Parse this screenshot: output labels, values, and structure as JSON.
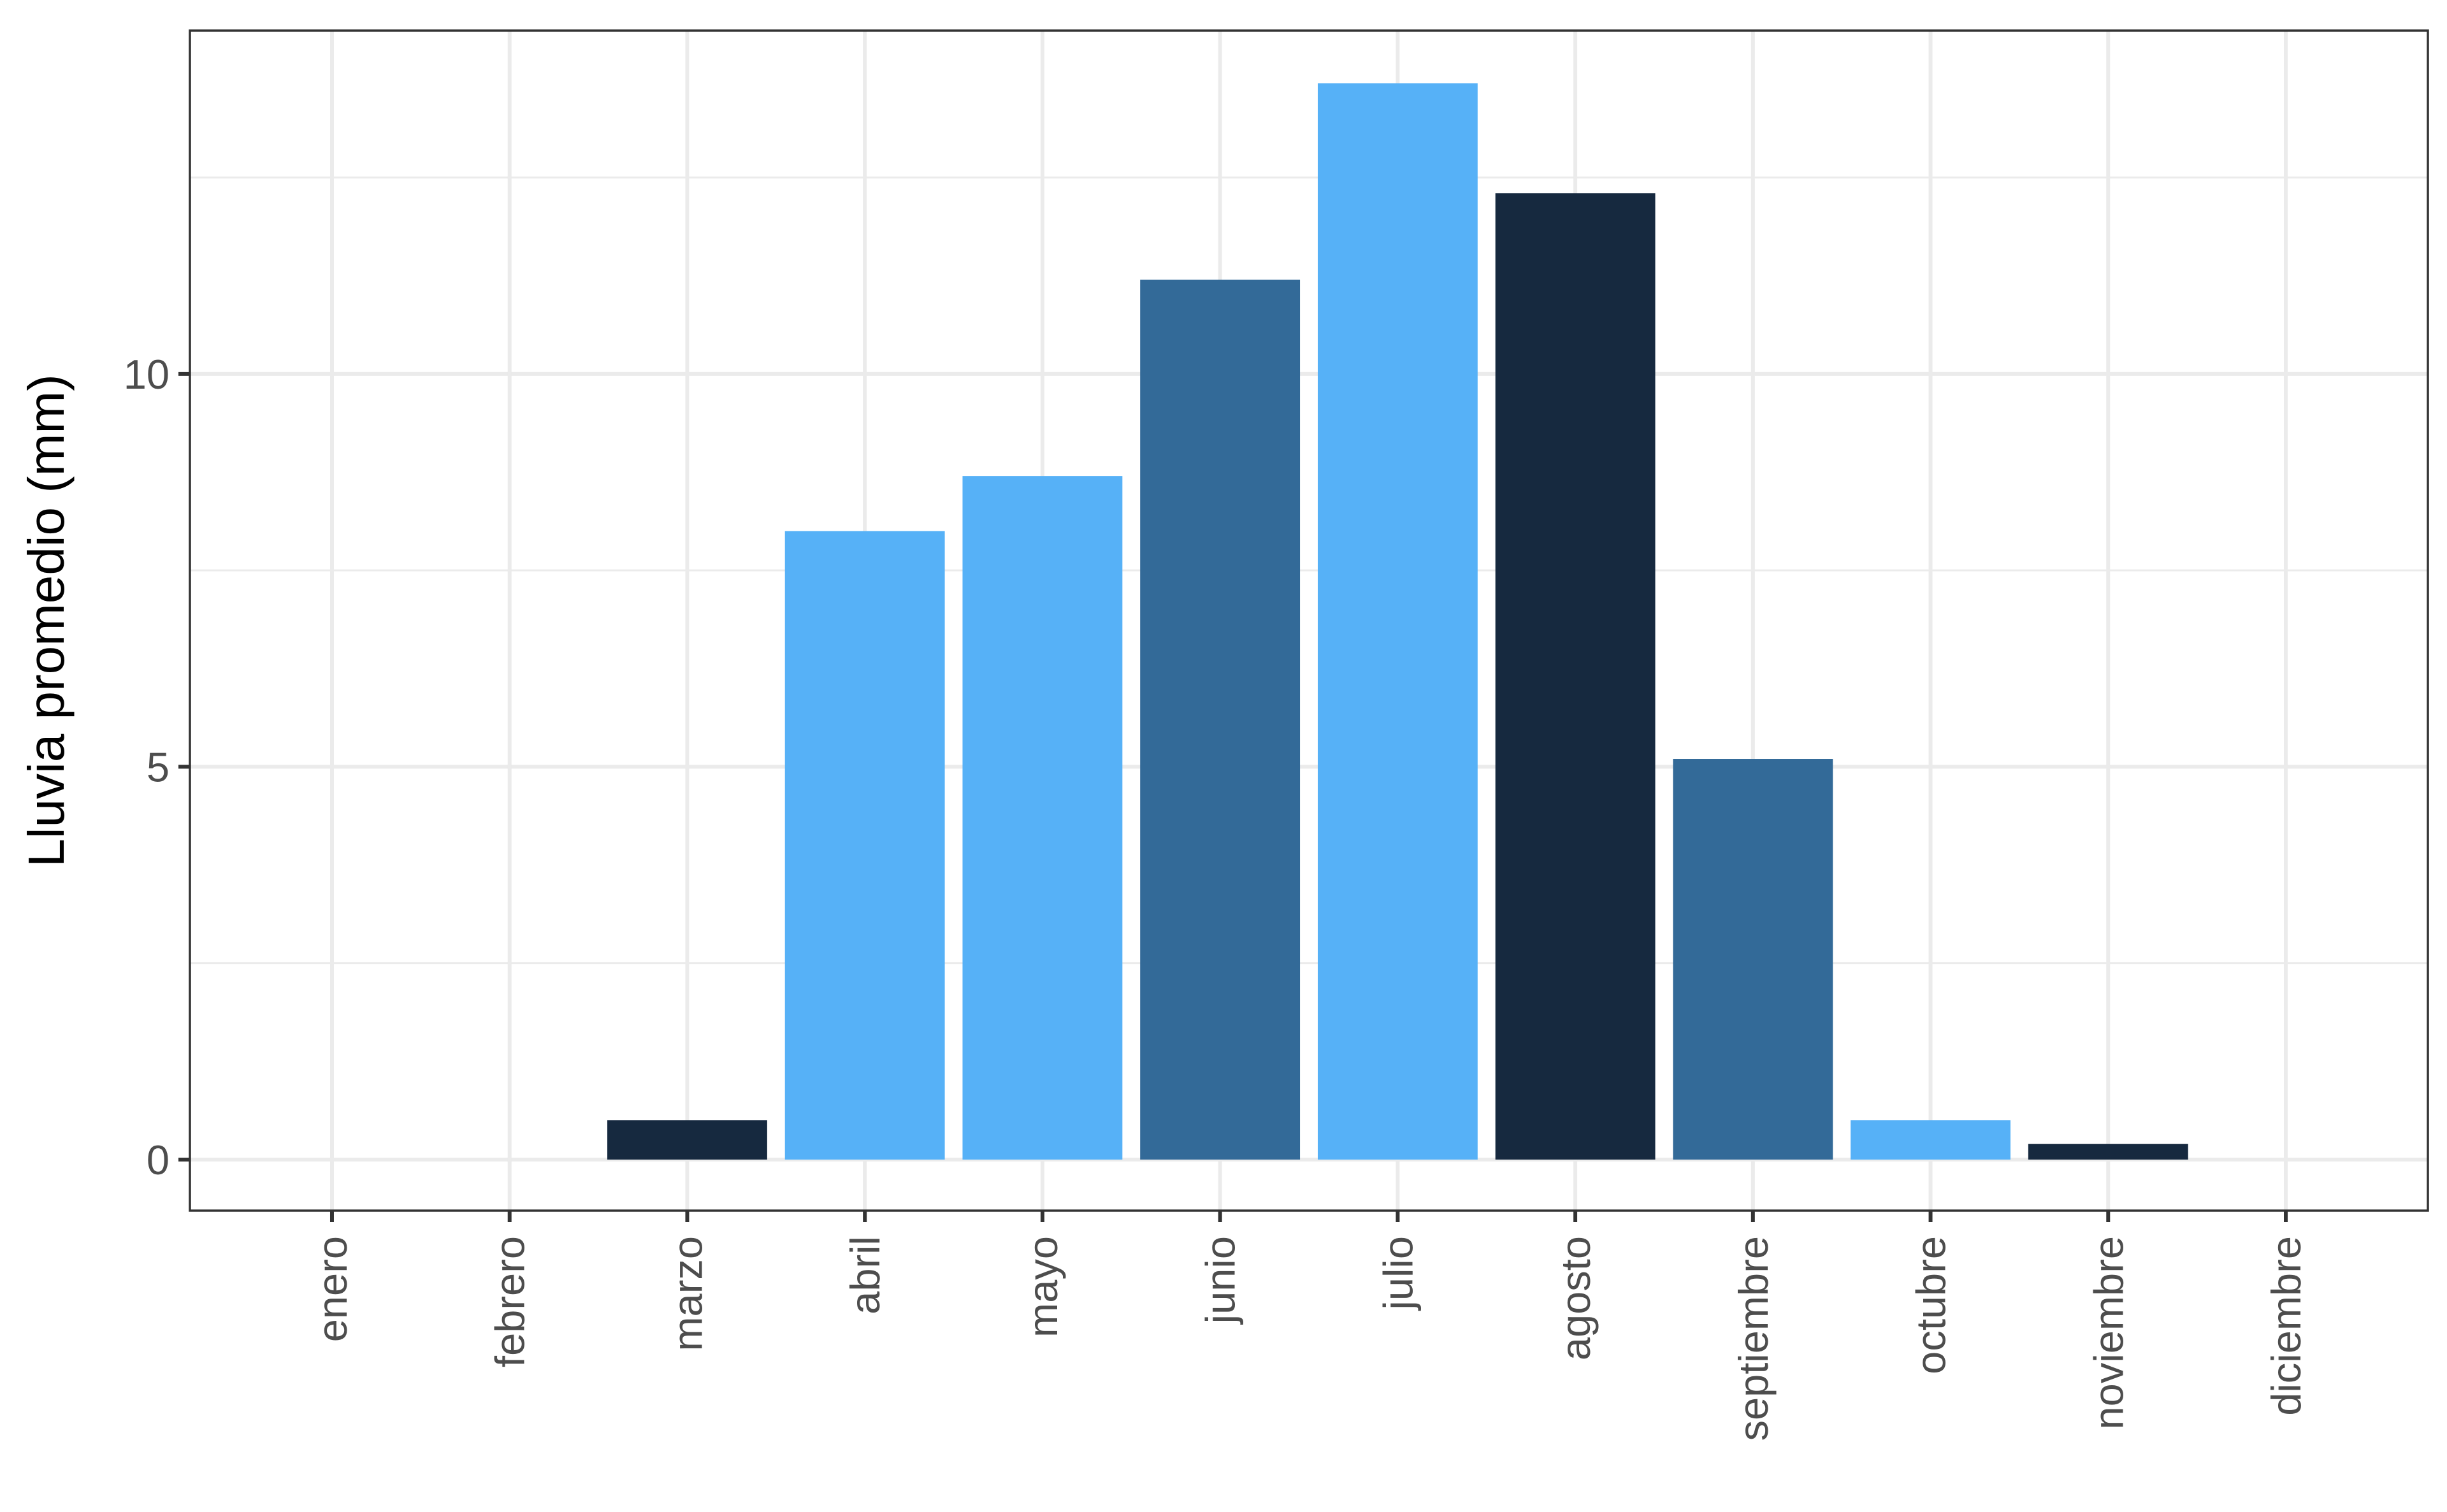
{
  "chart_data": {
    "type": "bar",
    "title": "",
    "xlabel": "",
    "ylabel": "Lluvia promedio (mm)",
    "categories": [
      "enero",
      "febrero",
      "marzo",
      "abril",
      "mayo",
      "junio",
      "julio",
      "agosto",
      "septiembre",
      "octubre",
      "noviembre",
      "diciembre"
    ],
    "values": [
      0,
      0,
      0.5,
      8.0,
      8.7,
      11.2,
      13.7,
      12.3,
      5.1,
      0.5,
      0.2,
      0
    ],
    "bar_colors": [
      "#16293f",
      "#16293f",
      "#16293f",
      "#56b1f7",
      "#56b1f7",
      "#336a98",
      "#56b1f7",
      "#16293f",
      "#336a98",
      "#56b1f7",
      "#16293f",
      "#16293f"
    ],
    "ylim": [
      -0.65,
      14.37
    ],
    "yticks": [
      0,
      5,
      10
    ],
    "ytick_labels": [
      "0",
      "5",
      "10"
    ],
    "y_minor_ticks": [
      2.5,
      7.5,
      12.5
    ],
    "grid": true,
    "legend": "none",
    "theme": "bw"
  }
}
